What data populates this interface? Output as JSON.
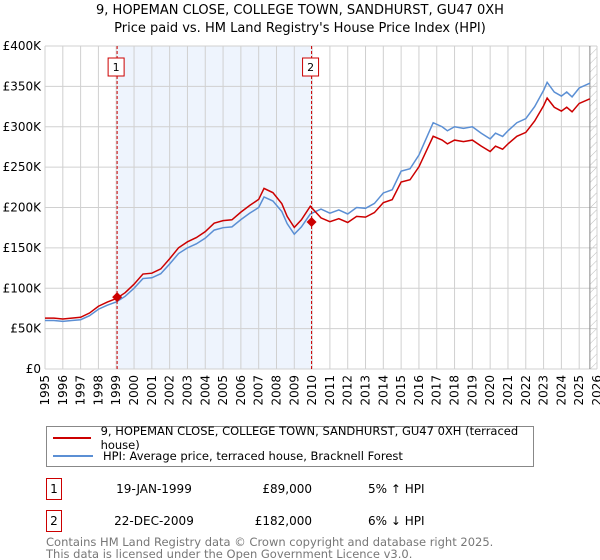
{
  "chart_data": {
    "type": "line",
    "title": "9, HOPEMAN CLOSE, COLLEGE TOWN, SANDHURST, GU47 0XH",
    "subtitle": "Price paid vs. HM Land Registry's House Price Index (HPI)",
    "xlim": [
      1995,
      2026
    ],
    "ylim": [
      0,
      400000
    ],
    "yticks": [
      0,
      50000,
      100000,
      150000,
      200000,
      250000,
      300000,
      350000,
      400000
    ],
    "ytick_labels": [
      "£0",
      "£50K",
      "£100K",
      "£150K",
      "£200K",
      "£250K",
      "£300K",
      "£350K",
      "£400K"
    ],
    "xticks": [
      1995,
      1996,
      1997,
      1998,
      1999,
      2000,
      2001,
      2002,
      2003,
      2004,
      2005,
      2006,
      2007,
      2008,
      2009,
      2010,
      2011,
      2012,
      2013,
      2014,
      2015,
      2016,
      2017,
      2018,
      2019,
      2020,
      2021,
      2022,
      2023,
      2024,
      2025,
      2026
    ],
    "grid": true,
    "forecast_hatch_from": 2025.6,
    "colors": {
      "property": "#cc0000",
      "hpi": "#5b8fd4",
      "shade": "#eef4fd"
    },
    "hpi_series": {
      "name": "HPI: Average price, terraced house, Bracknell Forest",
      "points": [
        [
          1995,
          60
        ],
        [
          1995.5,
          60
        ],
        [
          1996,
          59
        ],
        [
          1996.5,
          60
        ],
        [
          1997,
          61
        ],
        [
          1997.5,
          66
        ],
        [
          1998,
          74
        ],
        [
          1998.5,
          79
        ],
        [
          1999,
          83
        ],
        [
          1999.5,
          90
        ],
        [
          2000,
          100
        ],
        [
          2000.5,
          112
        ],
        [
          2001,
          113
        ],
        [
          2001.5,
          118
        ],
        [
          2002,
          130
        ],
        [
          2002.5,
          143
        ],
        [
          2003,
          150
        ],
        [
          2003.5,
          155
        ],
        [
          2004,
          162
        ],
        [
          2004.5,
          172
        ],
        [
          2005,
          175
        ],
        [
          2005.5,
          176
        ],
        [
          2006,
          185
        ],
        [
          2006.5,
          193
        ],
        [
          2007,
          200
        ],
        [
          2007.3,
          213
        ],
        [
          2007.8,
          208
        ],
        [
          2008.3,
          195
        ],
        [
          2008.6,
          180
        ],
        [
          2009,
          167
        ],
        [
          2009.4,
          176
        ],
        [
          2009.9,
          192
        ],
        [
          2010.5,
          198
        ],
        [
          2011,
          193
        ],
        [
          2011.5,
          197
        ],
        [
          2012,
          192
        ],
        [
          2012.5,
          200
        ],
        [
          2013,
          199
        ],
        [
          2013.5,
          205
        ],
        [
          2014,
          218
        ],
        [
          2014.5,
          222
        ],
        [
          2015,
          245
        ],
        [
          2015.5,
          248
        ],
        [
          2016,
          265
        ],
        [
          2016.5,
          290
        ],
        [
          2016.8,
          305
        ],
        [
          2017.3,
          300
        ],
        [
          2017.6,
          295
        ],
        [
          2018,
          300
        ],
        [
          2018.5,
          298
        ],
        [
          2019,
          300
        ],
        [
          2019.5,
          292
        ],
        [
          2020,
          285
        ],
        [
          2020.3,
          292
        ],
        [
          2020.7,
          288
        ],
        [
          2021,
          295
        ],
        [
          2021.5,
          305
        ],
        [
          2022,
          310
        ],
        [
          2022.5,
          325
        ],
        [
          2023,
          345
        ],
        [
          2023.2,
          355
        ],
        [
          2023.6,
          343
        ],
        [
          2024,
          338
        ],
        [
          2024.3,
          343
        ],
        [
          2024.6,
          337
        ],
        [
          2025,
          348
        ],
        [
          2025.6,
          354
        ]
      ],
      "unit": "thousand GBP"
    },
    "property_series": {
      "name": "9, HOPEMAN CLOSE, COLLEGE TOWN, SANDHURST, GU47 0XH (terraced house)",
      "ratio_before_sale2": 1.05,
      "ratio_after_sale2": 0.945
    },
    "sales": [
      {
        "id": "1",
        "year": 1999.05,
        "price": 89000
      },
      {
        "id": "2",
        "year": 2009.97,
        "price": 182000
      }
    ]
  },
  "legend": {
    "property": "9, HOPEMAN CLOSE, COLLEGE TOWN, SANDHURST, GU47 0XH (terraced house)",
    "hpi": "HPI: Average price, terraced house, Bracknell Forest"
  },
  "transactions": [
    {
      "num": "1",
      "date": "19-JAN-1999",
      "price": "£89,000",
      "hpi": "5% ↑ HPI"
    },
    {
      "num": "2",
      "date": "22-DEC-2009",
      "price": "£182,000",
      "hpi": "6% ↓ HPI"
    }
  ],
  "footer": {
    "line1": "Contains HM Land Registry data © Crown copyright and database right 2025.",
    "line2": "This data is licensed under the Open Government Licence v3.0."
  }
}
